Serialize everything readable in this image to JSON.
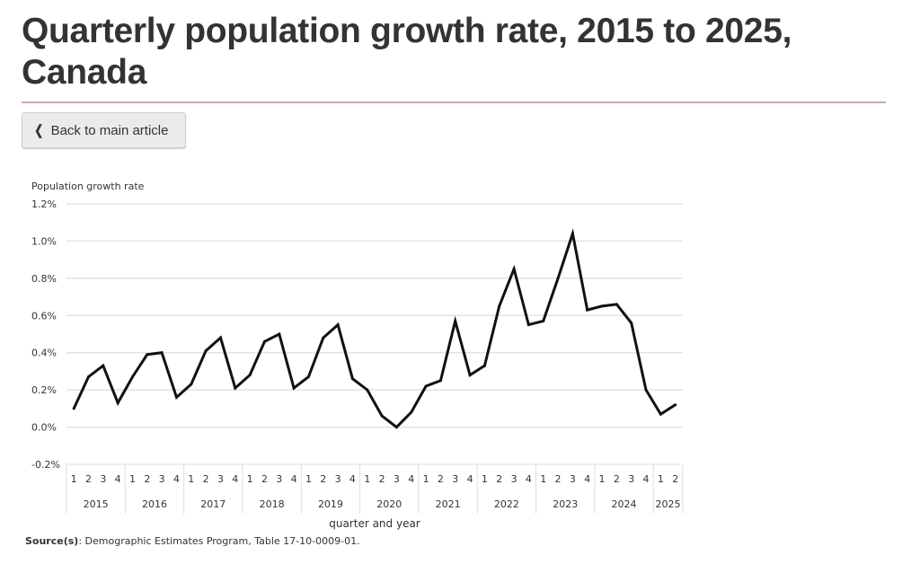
{
  "page": {
    "title": "Quarterly population growth rate, 2015 to 2025, Canada",
    "back_button_label": "Back to main article",
    "back_button_icon": "chevron-left-icon",
    "rule_color": "#d9a4a6",
    "source_label": "Source(s)",
    "source_text": ": Demographic Estimates Program, Table 17-10-0009-01."
  },
  "chart_data": {
    "type": "line",
    "title": "",
    "ylabel": "Population growth rate",
    "xlabel": "quarter and year",
    "ylim": [
      -0.2,
      1.2
    ],
    "yticks": [
      1.2,
      1.0,
      0.8,
      0.6,
      0.4,
      0.2,
      0.0,
      -0.2
    ],
    "ytick_labels": [
      "1.2%",
      "1.0%",
      "0.8%",
      "0.6%",
      "0.4%",
      "0.2%",
      "0.0%",
      "-0.2%"
    ],
    "grid": true,
    "legend": "none",
    "line_color": "#111111",
    "years": [
      {
        "label": "2015",
        "quarters": [
          "1",
          "2",
          "3",
          "4"
        ]
      },
      {
        "label": "2016",
        "quarters": [
          "1",
          "2",
          "3",
          "4"
        ]
      },
      {
        "label": "2017",
        "quarters": [
          "1",
          "2",
          "3",
          "4"
        ]
      },
      {
        "label": "2018",
        "quarters": [
          "1",
          "2",
          "3",
          "4"
        ]
      },
      {
        "label": "2019",
        "quarters": [
          "1",
          "2",
          "3",
          "4"
        ]
      },
      {
        "label": "2020",
        "quarters": [
          "1",
          "2",
          "3",
          "4"
        ]
      },
      {
        "label": "2021",
        "quarters": [
          "1",
          "2",
          "3",
          "4"
        ]
      },
      {
        "label": "2022",
        "quarters": [
          "1",
          "2",
          "3",
          "4"
        ]
      },
      {
        "label": "2023",
        "quarters": [
          "1",
          "2",
          "3",
          "4"
        ]
      },
      {
        "label": "2024",
        "quarters": [
          "1",
          "2",
          "3",
          "4"
        ]
      },
      {
        "label": "2025",
        "quarters": [
          "1",
          "2"
        ]
      }
    ],
    "series": [
      {
        "name": "Population growth rate (%)",
        "values": [
          0.1,
          0.27,
          0.33,
          0.13,
          0.27,
          0.39,
          0.4,
          0.16,
          0.23,
          0.41,
          0.48,
          0.21,
          0.28,
          0.46,
          0.5,
          0.21,
          0.27,
          0.48,
          0.55,
          0.26,
          0.2,
          0.06,
          0.0,
          0.08,
          0.22,
          0.25,
          0.57,
          0.28,
          0.33,
          0.65,
          0.85,
          0.55,
          0.57,
          0.8,
          1.04,
          0.63,
          0.65,
          0.66,
          0.56,
          0.2,
          0.07,
          0.12
        ]
      }
    ]
  }
}
